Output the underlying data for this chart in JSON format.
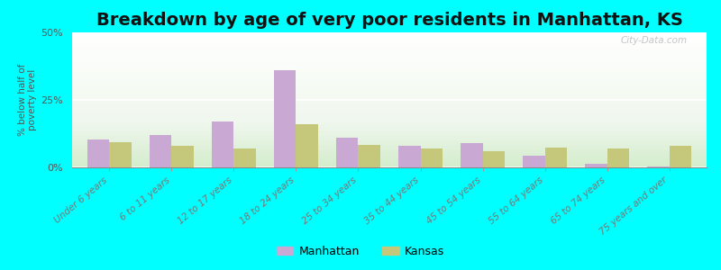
{
  "title": "Breakdown by age of very poor residents in Manhattan, KS",
  "categories": [
    "Under 6 years",
    "6 to 11 years",
    "12 to 17 years",
    "18 to 24 years",
    "25 to 34 years",
    "35 to 44 years",
    "45 to 54 years",
    "55 to 64 years",
    "65 to 74 years",
    "75 years and over"
  ],
  "manhattan_values": [
    10.5,
    12.0,
    17.0,
    36.0,
    11.0,
    8.0,
    9.0,
    4.5,
    1.5,
    0.5
  ],
  "kansas_values": [
    9.5,
    8.0,
    7.0,
    16.0,
    8.5,
    7.0,
    6.0,
    7.5,
    7.0,
    8.0
  ],
  "manhattan_color": "#c9a8d4",
  "kansas_color": "#c5c87a",
  "outer_bg": "#00ffff",
  "ylabel": "% below half of\npoverty level",
  "ylim": [
    0,
    50
  ],
  "yticks": [
    0,
    25,
    50
  ],
  "ytick_labels": [
    "0%",
    "25%",
    "50%"
  ],
  "legend_manhattan": "Manhattan",
  "legend_kansas": "Kansas",
  "title_fontsize": 14,
  "watermark_text": "City-Data.com"
}
